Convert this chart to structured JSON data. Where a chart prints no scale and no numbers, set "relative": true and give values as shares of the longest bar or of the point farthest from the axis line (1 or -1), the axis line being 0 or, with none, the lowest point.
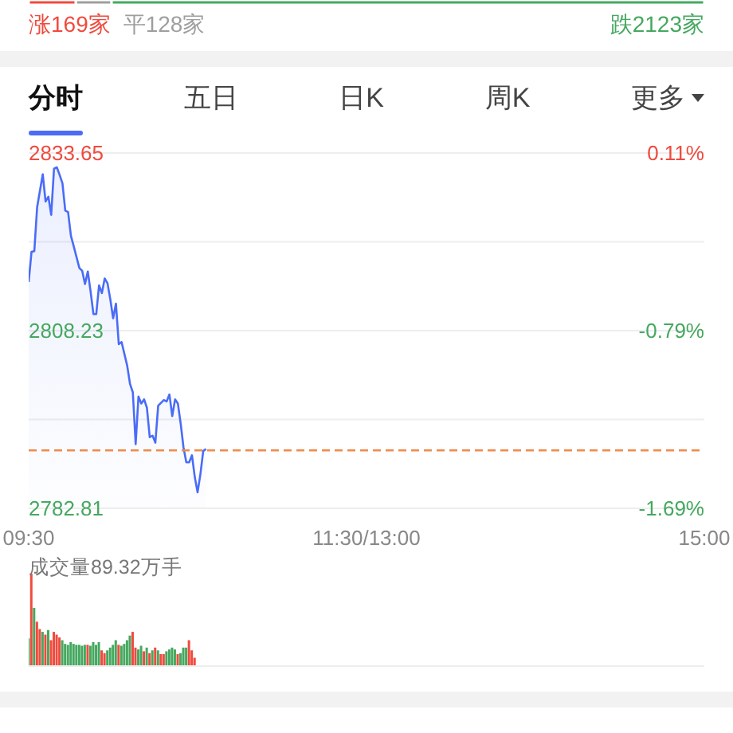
{
  "chart_data": [
    {
      "type": "bar",
      "orientation": "horizontal",
      "stacked": true,
      "tick_labels": false,
      "categories": [
        null
      ],
      "xlim": [
        0,
        2420
      ],
      "series": [
        {
          "color": "#f04a3e",
          "values": [
            169
          ],
          "value_labels": [
            "涨169家"
          ]
        },
        {
          "color": "#9e9e9e",
          "values": [
            128
          ],
          "value_labels": [
            "平128家"
          ]
        },
        {
          "color": "#45a85f",
          "values": [
            2123
          ],
          "value_labels": [
            "跌2123家"
          ]
        }
      ]
    },
    {
      "type": "other",
      "categories": [
        "分时",
        "五日",
        "日K",
        "周K",
        "更多"
      ]
    },
    {
      "type": "area",
      "color": "#4a6cf7",
      "categories": [
        "09:30",
        null,
        null,
        null,
        null,
        null,
        null,
        null,
        null,
        null,
        null,
        null,
        null,
        null,
        null,
        null,
        null,
        null,
        null,
        null,
        null,
        null,
        null,
        null,
        null,
        null,
        null,
        null,
        null,
        null,
        null,
        null,
        null,
        null,
        null,
        null,
        null,
        null,
        null,
        null,
        null,
        null,
        null,
        null,
        null,
        null,
        null,
        null,
        null,
        null,
        null,
        null,
        null,
        null,
        null,
        null,
        null,
        null,
        null,
        null,
        null,
        null,
        null,
        null,
        null,
        null,
        null,
        null,
        null,
        null,
        null,
        null,
        null,
        null,
        null,
        null,
        null,
        null,
        null,
        null,
        null,
        null,
        null,
        null,
        null,
        null,
        null,
        null,
        null,
        null,
        null,
        null,
        null,
        null,
        null,
        null,
        null,
        null,
        null,
        null,
        null,
        null,
        null,
        null,
        null,
        null,
        null,
        null,
        null,
        null,
        null,
        null,
        null,
        null,
        null,
        null,
        null,
        null,
        null,
        null,
        "11:30/13:00",
        null,
        null,
        null,
        null,
        null,
        null,
        null,
        null,
        null,
        null,
        null,
        null,
        null,
        null,
        null,
        null,
        null,
        null,
        null,
        null,
        null,
        null,
        null,
        null,
        null,
        null,
        null,
        null,
        null,
        null,
        null,
        null,
        null,
        null,
        null,
        null,
        null,
        null,
        null,
        null,
        null,
        null,
        null,
        null,
        null,
        null,
        null,
        null,
        null,
        null,
        null,
        null,
        null,
        null,
        null,
        null,
        null,
        null,
        null,
        null,
        null,
        null,
        null,
        null,
        null,
        null,
        null,
        null,
        null,
        null,
        null,
        null,
        null,
        null,
        null,
        null,
        null,
        null,
        null,
        null,
        null,
        null,
        null,
        null,
        null,
        null,
        null,
        null,
        null,
        null,
        null,
        null,
        null,
        null,
        null,
        null,
        null,
        null,
        null,
        null,
        null,
        null,
        null,
        null,
        null,
        null,
        null,
        null,
        null,
        null,
        null,
        null,
        null,
        null,
        null,
        null,
        null,
        null,
        null,
        "15:00"
      ],
      "values": [
        2815.2,
        2819.5,
        2819.6,
        2825.9,
        null,
        2830.6,
        2826.7,
        2827.4,
        2824.8,
        2831.4,
        2831.6,
        2830.5,
        2829.3,
        2825.4,
        2825.2,
        2821.8,
        2820.3,
        null,
        2817.2,
        2816.8,
        2814.9,
        2816.7,
        2813.8,
        2810.6,
        2810.6,
        2814.7,
        2813.6,
        2815.7,
        2815.0,
        2812.7,
        2810.0,
        2812.1,
        2806.3,
        2806.6,
        null,
        2803.2,
        2800.6,
        2799.4,
        2792.0,
        2798.8,
        2797.8,
        2798.4,
        2797.2,
        2793.0,
        2793.2,
        2792.2,
        2797.5,
        null,
        2798.3,
        2798.1,
        2799.1,
        2796.0,
        2798.4,
        2797.8,
        2794.9,
        2791.5,
        2789.4,
        2789.4,
        2790.4,
        2787.3,
        2785.1,
        2787.7,
        2791.0,
        2791.3,
        null,
        null,
        null,
        null,
        null,
        null,
        null,
        null,
        null,
        null,
        null,
        null,
        null,
        null,
        null,
        null,
        null,
        null,
        null,
        null,
        null,
        null,
        null,
        null,
        null,
        null,
        null,
        null,
        null,
        null,
        null,
        null,
        null,
        null,
        null,
        null,
        null,
        null,
        null,
        null,
        null,
        null,
        null,
        null,
        null,
        null,
        null,
        null,
        null,
        null,
        null,
        null,
        null,
        null,
        null,
        null,
        null,
        null,
        null,
        null,
        null,
        null,
        null,
        null,
        null,
        null,
        null,
        null,
        null,
        null,
        null,
        null,
        null,
        null,
        null,
        null,
        null,
        null,
        null,
        null,
        null,
        null,
        null,
        null,
        null,
        null,
        null,
        null,
        null,
        null,
        null,
        null,
        null,
        null,
        null,
        null,
        null,
        null,
        null,
        null,
        null,
        null,
        null,
        null,
        null,
        null,
        null,
        null,
        null,
        null,
        null,
        null,
        null,
        null,
        null,
        null,
        null,
        null,
        null,
        null,
        null,
        null,
        null,
        null,
        null,
        null,
        null,
        null,
        null,
        null,
        null,
        null,
        null,
        null,
        null,
        null,
        null,
        null,
        null,
        null,
        null,
        null,
        null,
        null,
        null,
        null,
        null,
        null,
        null,
        null,
        null,
        null,
        null,
        null,
        null,
        null,
        null,
        null,
        null,
        null,
        null,
        null,
        null,
        null,
        null,
        null,
        null,
        null,
        null,
        null,
        null,
        null,
        null,
        null,
        null,
        null,
        null
      ],
      "ylim": [
        2782.81,
        2833.65
      ],
      "yticks": [
        2782.81,
        {
          "value": 2795.52,
          "label": null
        },
        2808.23,
        {
          "value": 2820.94,
          "label": null
        },
        2833.65
      ],
      "y2lim": [
        -1.69,
        0.11
      ],
      "y2ticks": [
        {
          "value": -1.69,
          "label": "-1.69%"
        },
        {
          "value": -0.79,
          "label": "-0.79%"
        },
        {
          "value": 0.11,
          "label": "0.11%"
        }
      ],
      "ref_lines": [
        {
          "axis": "y",
          "value": 2791.1,
          "color": "#f08a4b",
          "line_style": "dashed"
        }
      ],
      "grid": "y"
    },
    {
      "type": "bar",
      "title": "成交量89.32万手",
      "relative": true,
      "tick_labels": false,
      "categories": [
        null,
        null,
        null,
        null,
        null,
        null,
        null,
        null,
        null,
        null,
        null,
        null,
        null,
        null,
        null,
        null,
        null,
        null,
        null,
        null,
        null,
        null,
        null,
        null,
        null,
        null,
        null,
        null,
        null,
        null,
        null,
        null,
        null,
        null,
        null,
        null,
        null,
        null,
        null,
        null,
        null,
        null,
        null,
        null,
        null,
        null,
        null,
        null,
        null,
        null,
        null,
        null,
        null,
        null,
        null,
        null,
        null,
        null,
        null,
        null,
        null,
        null,
        null,
        null,
        null,
        null,
        null,
        null,
        null,
        null,
        null,
        null,
        null,
        null,
        null,
        null,
        null,
        null,
        null,
        null,
        null,
        null,
        null,
        null,
        null,
        null,
        null,
        null,
        null,
        null,
        null,
        null,
        null,
        null,
        null,
        null,
        null,
        null,
        null,
        null,
        null,
        null,
        null,
        null,
        null,
        null,
        null,
        null,
        null,
        null,
        null,
        null,
        null,
        null,
        null,
        null,
        null,
        null,
        null,
        null,
        null,
        null,
        null,
        null,
        null,
        null,
        null,
        null,
        null,
        null,
        null,
        null,
        null,
        null,
        null,
        null,
        null,
        null,
        null,
        null,
        null,
        null,
        null,
        null,
        null,
        null,
        null,
        null,
        null,
        null,
        null,
        null,
        null,
        null,
        null,
        null,
        null,
        null,
        null,
        null,
        null,
        null,
        null,
        null,
        null,
        null,
        null,
        null,
        null,
        null,
        null,
        null,
        null,
        null,
        null,
        null,
        null,
        null,
        null,
        null,
        null,
        null,
        null,
        null,
        null,
        null,
        null,
        null,
        null,
        null,
        null,
        null,
        null,
        null,
        null,
        null,
        null,
        null,
        null,
        null,
        null,
        null,
        null,
        null,
        null,
        null,
        null,
        null,
        null,
        null,
        null,
        null,
        null,
        null,
        null,
        null,
        null,
        null,
        null,
        null,
        null,
        null,
        null,
        null,
        null,
        null,
        null,
        null,
        null,
        null,
        null,
        null,
        null,
        null,
        null,
        null,
        null,
        null,
        null,
        null,
        null
      ],
      "values": [
        0.3,
        1,
        0.63,
        0.48,
        0.4,
        0.37,
        0.34,
        0.39,
        0.28,
        0.37,
        0.34,
        0.31,
        0.28,
        0.24,
        0.23,
        0.26,
        0.24,
        0.23,
        0.23,
        0.22,
        0.23,
        0.23,
        0.22,
        0.26,
        0.23,
        0.26,
        0.17,
        0.14,
        0.17,
        0.2,
        0.23,
        0.28,
        0.23,
        0.22,
        0.24,
        0.28,
        0.33,
        0.37,
        0.2,
        0.18,
        0.22,
        0.16,
        0.2,
        0.14,
        0.17,
        0.2,
        0.17,
        0.13,
        0.13,
        0.16,
        0.18,
        0.2,
        0.18,
        0.13,
        0.14,
        0.2,
        0.2,
        0.28,
        0.17,
        0.09,
        null,
        null,
        null,
        null,
        null,
        null,
        null,
        null,
        null,
        null,
        null,
        null,
        null,
        null,
        null,
        null,
        null,
        null,
        null,
        null,
        null,
        null,
        null,
        null,
        null,
        null,
        null,
        null,
        null,
        null,
        null,
        null,
        null,
        null,
        null,
        null,
        null,
        null,
        null,
        null,
        null,
        null,
        null,
        null,
        null,
        null,
        null,
        null,
        null,
        null,
        null,
        null,
        null,
        null,
        null,
        null,
        null,
        null,
        null,
        null,
        null,
        null,
        null,
        null,
        null,
        null,
        null,
        null,
        null,
        null,
        null,
        null,
        null,
        null,
        null,
        null,
        null,
        null,
        null,
        null,
        null,
        null,
        null,
        null,
        null,
        null,
        null,
        null,
        null,
        null,
        null,
        null,
        null,
        null,
        null,
        null,
        null,
        null,
        null,
        null,
        null,
        null,
        null,
        null,
        null,
        null,
        null,
        null,
        null,
        null,
        null,
        null,
        null,
        null,
        null,
        null,
        null,
        null,
        null,
        null,
        null,
        null,
        null,
        null,
        null,
        null,
        null,
        null,
        null,
        null,
        null,
        null,
        null,
        null,
        null,
        null,
        null,
        null,
        null,
        null,
        null,
        null,
        null,
        null,
        null,
        null,
        null,
        null,
        null,
        null,
        null,
        null,
        null,
        null,
        null,
        null,
        null,
        null,
        null,
        null,
        null,
        null,
        null,
        null,
        null,
        null,
        null,
        null,
        null,
        null,
        null,
        null,
        null,
        null,
        null,
        null,
        null,
        null,
        null,
        null,
        null
      ],
      "colors": [
        "#45a85f",
        "#f04a3e",
        "#45a85f",
        "#f04a3e",
        "#f04a3e",
        "#45a85f",
        "#f04a3e",
        "#45a85f",
        "#f04a3e",
        "#f04a3e",
        "#f04a3e",
        "#f04a3e",
        "#45a85f",
        "#45a85f",
        "#45a85f",
        "#45a85f",
        "#45a85f",
        "#45a85f",
        "#45a85f",
        "#45a85f",
        "#45a85f",
        "#f04a3e",
        "#45a85f",
        "#45a85f",
        "#45a85f",
        "#45a85f",
        "#f04a3e",
        "#f04a3e",
        "#45a85f",
        "#45a85f",
        "#45a85f",
        "#45a85f",
        "#f04a3e",
        "#45a85f",
        "#45a85f",
        "#45a85f",
        "#45a85f",
        "#f04a3e",
        "#f04a3e",
        "#45a85f",
        "#45a85f",
        "#f04a3e",
        "#45a85f",
        "#f04a3e",
        "#45a85f",
        "#f04a3e",
        "#45a85f",
        "#f04a3e",
        "#f04a3e",
        "#45a85f",
        "#45a85f",
        "#45a85f",
        "#45a85f",
        "#f04a3e",
        "#45a85f",
        "#45a85f",
        "#45a85f",
        "#f04a3e",
        "#f04a3e",
        "#f04a3e",
        null,
        null,
        null,
        null,
        null,
        null,
        null,
        null,
        null,
        null,
        null,
        null,
        null,
        null,
        null,
        null,
        null,
        null,
        null,
        null,
        null,
        null,
        null,
        null,
        null,
        null,
        null,
        null,
        null,
        null,
        null,
        null,
        null,
        null,
        null,
        null,
        null,
        null,
        null,
        null,
        null,
        null,
        null,
        null,
        null,
        null,
        null,
        null,
        null,
        null,
        null,
        null,
        null,
        null,
        null,
        null,
        null,
        null,
        null,
        null,
        null,
        null,
        null,
        null,
        null,
        null,
        null,
        null,
        null,
        null,
        null,
        null,
        null,
        null,
        null,
        null,
        null,
        null,
        null,
        null,
        null,
        null,
        null,
        null,
        null,
        null,
        null,
        null,
        null,
        null,
        null,
        null,
        null,
        null,
        null,
        null,
        null,
        null,
        null,
        null,
        null,
        null,
        null,
        null,
        null,
        null,
        null,
        null,
        null,
        null,
        null,
        null,
        null,
        null,
        null,
        null,
        null,
        null,
        null,
        null,
        null,
        null,
        null,
        null,
        null,
        null,
        null,
        null,
        null,
        null,
        null,
        null,
        null,
        null,
        null,
        null,
        null,
        null,
        null,
        null,
        null,
        null,
        null,
        null,
        null,
        null,
        null,
        null,
        null,
        null,
        null,
        null,
        null,
        null,
        null,
        null,
        null,
        null,
        null,
        null,
        null,
        null,
        null,
        null,
        null,
        null,
        null,
        null,
        null,
        null,
        null,
        null,
        null,
        null,
        null,
        null,
        null,
        null,
        null,
        null,
        null
      ]
    }
  ]
}
